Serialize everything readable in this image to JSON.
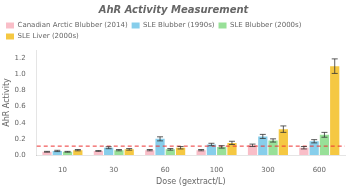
{
  "chart_data": {
    "type": "bar",
    "title": "AhR Activity Measurement",
    "xlabel": "Dose (gextract/L)",
    "ylabel": "AhR Activity",
    "categories": [
      "10",
      "30",
      "60",
      "100",
      "300",
      "600"
    ],
    "series": [
      {
        "name": "Canadian Arctic Blubber (2014)",
        "color": "#f9bec8",
        "values": [
          0.04,
          0.05,
          0.06,
          0.06,
          0.12,
          0.09
        ],
        "errors": [
          0.005,
          0.005,
          0.008,
          0.008,
          0.015,
          0.015
        ]
      },
      {
        "name": "SLE Blubber (1990s)",
        "color": "#87ceeb",
        "values": [
          0.05,
          0.09,
          0.2,
          0.13,
          0.23,
          0.17
        ],
        "errors": [
          0.008,
          0.012,
          0.025,
          0.015,
          0.025,
          0.02
        ]
      },
      {
        "name": "SLE Blubber (2000s)",
        "color": "#98e098",
        "values": [
          0.04,
          0.06,
          0.07,
          0.1,
          0.18,
          0.25
        ],
        "errors": [
          0.005,
          0.008,
          0.01,
          0.015,
          0.02,
          0.03
        ]
      },
      {
        "name": "SLE Liver (2000s)",
        "color": "#f5c842",
        "values": [
          0.06,
          0.07,
          0.09,
          0.15,
          0.32,
          1.1
        ],
        "errors": [
          0.008,
          0.01,
          0.015,
          0.02,
          0.04,
          0.09
        ]
      }
    ],
    "reference_line": {
      "y": 0.11,
      "color": "#ee3333",
      "line_style": "dashed"
    },
    "ylim": [
      0,
      1.3
    ],
    "yticks": [
      {
        "value": 0,
        "label": "0.0"
      },
      {
        "value": 0.2,
        "label": "0.2"
      },
      {
        "value": 0.4,
        "label": "0.4"
      },
      {
        "value": 0.6,
        "label": "0.6"
      },
      {
        "value": 0.8,
        "label": "0.8"
      },
      {
        "value": 1.0,
        "label": "1.0"
      },
      {
        "value": 1.2,
        "label": "1.2"
      }
    ],
    "grid": false,
    "legend": "upper left"
  }
}
